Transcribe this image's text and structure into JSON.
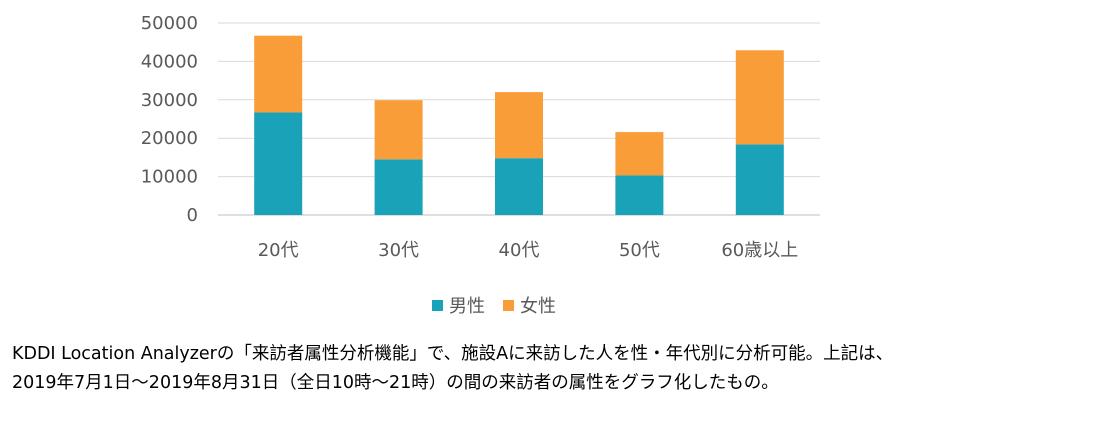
{
  "chart_data": {
    "type": "bar",
    "stacked": true,
    "categories": [
      "20代",
      "30代",
      "40代",
      "50代",
      "60歳以上"
    ],
    "series": [
      {
        "name": "男性",
        "color": "#1aa2b8",
        "values": [
          26700,
          14500,
          14800,
          10300,
          18400
        ]
      },
      {
        "name": "女性",
        "color": "#f99d39",
        "values": [
          20000,
          15400,
          17200,
          11300,
          24500
        ]
      }
    ],
    "ylim": [
      0,
      50000
    ],
    "yticks": [
      0,
      10000,
      20000,
      30000,
      40000,
      50000
    ],
    "grid": true,
    "legend_position": "bottom",
    "title": "",
    "xlabel": "",
    "ylabel": ""
  },
  "caption": {
    "line1": "KDDI Location Analyzerの「来訪者属性分析機能」で、施設Aに来訪した人を性・年代別に分析可能。上記は、",
    "line2": "2019年7月1日～2019年8月31日（全日10時～21時）の間の来訪者の属性をグラフ化したもの。"
  }
}
